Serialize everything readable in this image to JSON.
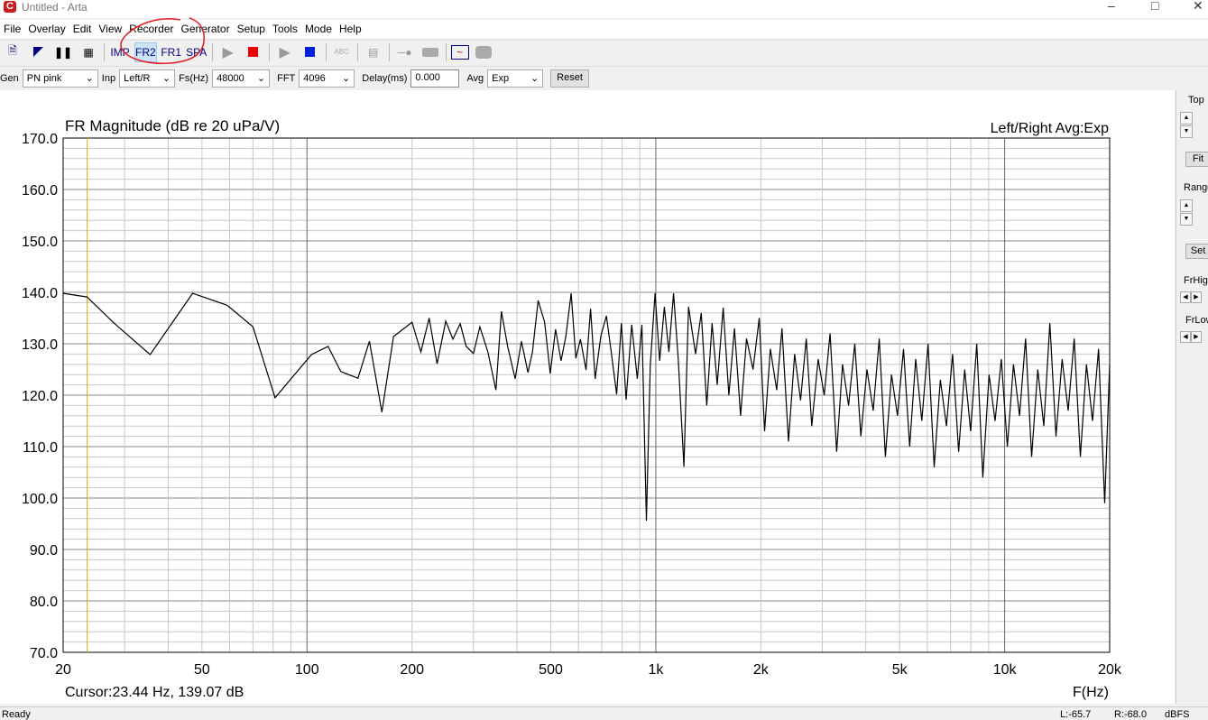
{
  "window": {
    "title": "Untitled - Arta",
    "icon": "arta-logo-icon"
  },
  "menu": [
    "File",
    "Overlay",
    "Edit",
    "View",
    "Recorder",
    "Generator",
    "Setup",
    "Tools",
    "Mode",
    "Help"
  ],
  "toolbar": {
    "imp": "IMP",
    "fr2": "FR2",
    "fr1": "FR1",
    "spa": "SPA",
    "active": "FR2",
    "annotation_color": "#e0262b"
  },
  "controls": {
    "gen_label": "Gen",
    "gen_value": "PN pink",
    "inp_label": "Inp",
    "inp_value": "Left/R",
    "fs_label": "Fs(Hz)",
    "fs_value": "48000",
    "fft_label": "FFT",
    "fft_value": "4096",
    "delay_label": "Delay(ms)",
    "delay_value": "0.000",
    "avg_label": "Avg",
    "avg_value": "Exp",
    "reset_label": "Reset"
  },
  "side": {
    "top": "Top",
    "fit": "Fit",
    "range": "Range",
    "set": "Set",
    "frhigh": "FrHigh",
    "frlow": "FrLow"
  },
  "status": {
    "left": "Ready",
    "l": "L:-65.7",
    "r": "R:-68.0",
    "unit": "dBFS"
  },
  "chart_data": {
    "type": "line",
    "title": "FR Magnitude (dB re 20 uPa/V)",
    "info": "Left/Right  Avg:Exp",
    "xlabel": "F(Hz)",
    "cursor_text": "Cursor:23.44 Hz, 139.07 dB",
    "cursor_hz": 23.44,
    "xscale": "log",
    "xlim": [
      20,
      20000
    ],
    "ylim": [
      70,
      170
    ],
    "yticks": [
      "170.0",
      "160.0",
      "150.0",
      "140.0",
      "130.0",
      "120.0",
      "110.0",
      "100.0",
      "90.0",
      "80.0",
      "70.0"
    ],
    "xticks": [
      {
        "v": 20,
        "t": "20"
      },
      {
        "v": 50,
        "t": "50"
      },
      {
        "v": 100,
        "t": "100"
      },
      {
        "v": 200,
        "t": "200"
      },
      {
        "v": 500,
        "t": "500"
      },
      {
        "v": 1000,
        "t": "1k"
      },
      {
        "v": 2000,
        "t": "2k"
      },
      {
        "v": 5000,
        "t": "5k"
      },
      {
        "v": 10000,
        "t": "10k"
      },
      {
        "v": 20000,
        "t": "20k"
      }
    ],
    "grid": true,
    "line_color": "#000000",
    "cursor_color": "#d4b000",
    "x": [
      20,
      23.4,
      28,
      35.5,
      47,
      59,
      70,
      81,
      103,
      115,
      125,
      140,
      151,
      164,
      177,
      200,
      212,
      224,
      236,
      250,
      262,
      275,
      286,
      300,
      313,
      330,
      348,
      361,
      376,
      395,
      412,
      430,
      443,
      460,
      480,
      498,
      516,
      535,
      552,
      572,
      590,
      608,
      631,
      650,
      670,
      696,
      722,
      745,
      772,
      797,
      822,
      853,
      885,
      912,
      940,
      964,
      995,
      1026,
      1058,
      1090,
      1124,
      1160,
      1204,
      1241,
      1300,
      1350,
      1400,
      1450,
      1500,
      1560,
      1620,
      1680,
      1750,
      1820,
      1900,
      1980,
      2050,
      2130,
      2220,
      2300,
      2400,
      2500,
      2600,
      2700,
      2800,
      2920,
      3040,
      3160,
      3300,
      3430,
      3570,
      3720,
      3870,
      4030,
      4200,
      4370,
      4550,
      4740,
      4930,
      5130,
      5340,
      5560,
      5790,
      6030,
      6280,
      6540,
      6810,
      7090,
      7380,
      7680,
      7990,
      8320,
      8660,
      9020,
      9390,
      9780,
      10180,
      10600,
      11030,
      11480,
      11950,
      12440,
      12950,
      13480,
      14030,
      14610,
      15210,
      15830,
      16480,
      17160,
      17860,
      18590,
      19350,
      20000
    ],
    "y": [
      139.8,
      139.1,
      134,
      127.9,
      139.8,
      137.5,
      133.3,
      119.5,
      127.9,
      129.5,
      124.6,
      123.3,
      130.5,
      116.7,
      131.4,
      134.2,
      128.4,
      135,
      126.1,
      134.4,
      130.9,
      133.9,
      129.5,
      128.1,
      133.3,
      128.4,
      121,
      136.3,
      129.5,
      123.2,
      130.5,
      124.4,
      128.4,
      138.4,
      134.2,
      124.2,
      132.8,
      126.7,
      131.4,
      139.8,
      127.2,
      130.9,
      124.9,
      136.8,
      123.2,
      131.6,
      135.4,
      128.4,
      120.2,
      134,
      119.1,
      133.7,
      123.2,
      133.7,
      95.6,
      125.8,
      139.8,
      126.7,
      137.2,
      128.4,
      139.8,
      126.7,
      106.1,
      137.2,
      128,
      136,
      118,
      134,
      122,
      137,
      120,
      133,
      116,
      131,
      125,
      135,
      113,
      129,
      121,
      133,
      111,
      128,
      119,
      131,
      114,
      127,
      120,
      132,
      109,
      126,
      118,
      130,
      112,
      125,
      117,
      131,
      108,
      124,
      116,
      129,
      110,
      127,
      115,
      130,
      106,
      123,
      114,
      128,
      109,
      125,
      113,
      130,
      104,
      124,
      115,
      127,
      110,
      126,
      116,
      131,
      108,
      125,
      114,
      134,
      112,
      127,
      117,
      131,
      108,
      126,
      115,
      129,
      99,
      126
    ]
  }
}
